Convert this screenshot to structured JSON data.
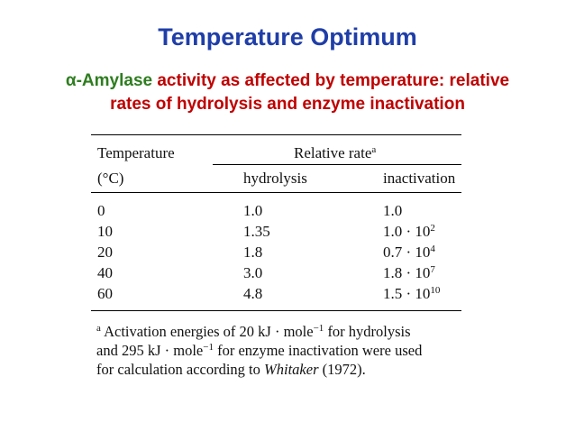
{
  "title": "Temperature Optimum",
  "subtitle": {
    "enzyme": "α-Amylase",
    "line1_rest": " activity as affected by temperature: relative",
    "line2": "rates of hydrolysis and enzyme inactivation"
  },
  "table": {
    "header": {
      "temperature": "Temperature",
      "unit": "(°C)",
      "relative_rate": "Relative rate",
      "relative_rate_mark": "a",
      "hydrolysis": "hydrolysis",
      "inactivation": "inactivation"
    },
    "rows": [
      {
        "temp": "0",
        "hydrolysis": "1.0",
        "inact_base": "1.0",
        "inact_exp": ""
      },
      {
        "temp": "10",
        "hydrolysis": "1.35",
        "inact_base": "1.0 · 10",
        "inact_exp": "2"
      },
      {
        "temp": "20",
        "hydrolysis": "1.8",
        "inact_base": "0.7 · 10",
        "inact_exp": "4"
      },
      {
        "temp": "40",
        "hydrolysis": "3.0",
        "inact_base": "1.8 · 10",
        "inact_exp": "7"
      },
      {
        "temp": "60",
        "hydrolysis": "4.8",
        "inact_base": "1.5 · 10",
        "inact_exp": "10"
      }
    ]
  },
  "footnote": {
    "mark": "a",
    "line1_a": " Activation energies of 20 kJ · mole",
    "exp1": "−1",
    "line1_b": " for hydrolysis",
    "line2_a": "and 295 kJ · mole",
    "exp2": "−1",
    "line2_b": " for enzyme inactivation were used",
    "line3_a": "for calculation according to ",
    "author": "Whitaker",
    "line3_b": " (1972)."
  }
}
